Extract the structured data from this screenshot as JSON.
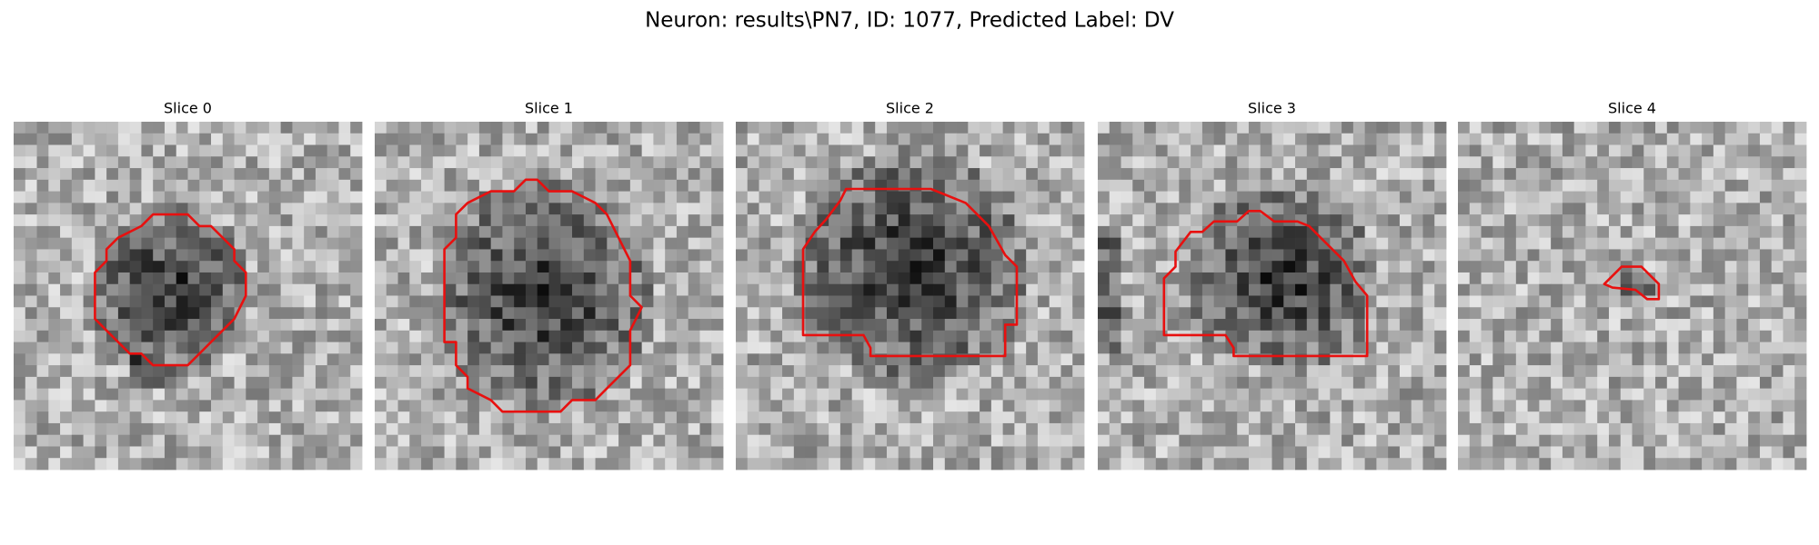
{
  "header": {
    "title": "Neuron: results\\PN7, ID: 1077, Predicted Label: DV"
  },
  "panels": [
    {
      "title": "Slice 0"
    },
    {
      "title": "Slice 1"
    },
    {
      "title": "Slice 2"
    },
    {
      "title": "Slice 3"
    },
    {
      "title": "Slice 4"
    }
  ]
}
